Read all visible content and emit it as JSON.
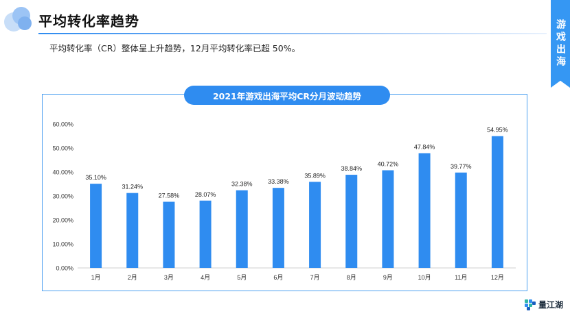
{
  "page": {
    "title": "平均转化率趋势",
    "subtitle": "平均转化率（CR）整体呈上升趋势，12月平均转化率已超 50%。",
    "side_tab": "游戏出海",
    "brand": "量江湖"
  },
  "colors": {
    "accent": "#2f8cf0",
    "bar": "#2f8cf0",
    "side_tab": "#3597f3"
  },
  "chart_data": {
    "type": "bar",
    "title": "2021年游戏出海平均CR分月波动趋势",
    "categories": [
      "1月",
      "2月",
      "3月",
      "4月",
      "5月",
      "6月",
      "7月",
      "8月",
      "9月",
      "10月",
      "11月",
      "12月"
    ],
    "values": [
      35.1,
      31.24,
      27.58,
      28.07,
      32.38,
      33.38,
      35.89,
      38.84,
      40.72,
      47.84,
      39.77,
      54.95
    ],
    "data_labels": [
      "35.10%",
      "31.24%",
      "27.58%",
      "28.07%",
      "32.38%",
      "33.38%",
      "35.89%",
      "38.84%",
      "40.72%",
      "47.84%",
      "39.77%",
      "54.95%"
    ],
    "y_ticks": [
      "0.00%",
      "10.00%",
      "20.00%",
      "30.00%",
      "40.00%",
      "50.00%",
      "60.00%"
    ],
    "ylim": [
      0,
      60
    ],
    "grid": false,
    "legend": "none"
  }
}
